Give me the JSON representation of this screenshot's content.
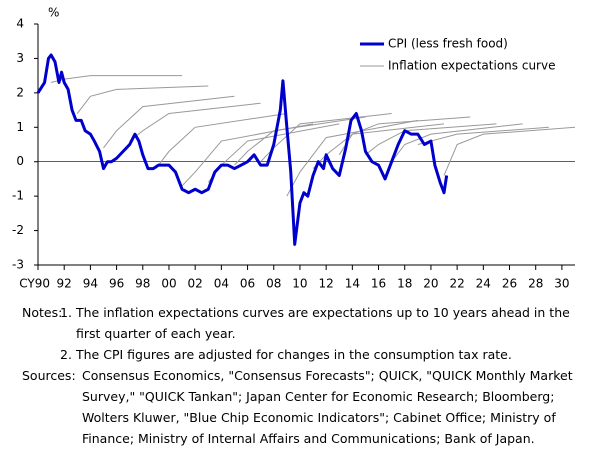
{
  "chart_data": {
    "type": "line",
    "y_unit": "%",
    "xlim": [
      1990,
      2031
    ],
    "ylim": [
      -3,
      4
    ],
    "yticks": [
      -3,
      -2,
      -1,
      0,
      1,
      2,
      3,
      4
    ],
    "xticks": [
      {
        "value": 1990,
        "label": "CY90"
      },
      {
        "value": 1992,
        "label": "92"
      },
      {
        "value": 1994,
        "label": "94"
      },
      {
        "value": 1996,
        "label": "96"
      },
      {
        "value": 1998,
        "label": "98"
      },
      {
        "value": 2000,
        "label": "00"
      },
      {
        "value": 2002,
        "label": "02"
      },
      {
        "value": 2004,
        "label": "04"
      },
      {
        "value": 2006,
        "label": "06"
      },
      {
        "value": 2008,
        "label": "08"
      },
      {
        "value": 2010,
        "label": "10"
      },
      {
        "value": 2012,
        "label": "12"
      },
      {
        "value": 2014,
        "label": "14"
      },
      {
        "value": 2016,
        "label": "16"
      },
      {
        "value": 2018,
        "label": "18"
      },
      {
        "value": 2020,
        "label": "20"
      },
      {
        "value": 2022,
        "label": "22"
      },
      {
        "value": 2024,
        "label": "24"
      },
      {
        "value": 2026,
        "label": "26"
      },
      {
        "value": 2028,
        "label": "28"
      },
      {
        "value": 2030,
        "label": "30"
      }
    ],
    "legend": "upper right",
    "series": [
      {
        "name": "CPI (less fresh food)",
        "color": "#0000cc",
        "x": [
          1990.0,
          1990.5,
          1990.8,
          1991.0,
          1991.3,
          1991.6,
          1991.8,
          1992.0,
          1992.3,
          1992.6,
          1992.9,
          1993.3,
          1993.6,
          1994.0,
          1994.3,
          1994.7,
          1995.0,
          1995.3,
          1995.6,
          1996.0,
          1996.5,
          1997.0,
          1997.4,
          1997.7,
          1998.0,
          1998.4,
          1998.8,
          1999.2,
          1999.6,
          2000.0,
          2000.5,
          2001.0,
          2001.5,
          2002.0,
          2002.5,
          2003.0,
          2003.5,
          2004.0,
          2004.5,
          2005.0,
          2005.5,
          2006.0,
          2006.5,
          2007.0,
          2007.5,
          2008.0,
          2008.5,
          2008.7,
          2009.0,
          2009.3,
          2009.6,
          2010.0,
          2010.3,
          2010.6,
          2011.0,
          2011.4,
          2011.8,
          2012.0,
          2012.5,
          2013.0,
          2013.5,
          2013.9,
          2014.3,
          2014.7,
          2015.0,
          2015.5,
          2016.0,
          2016.5,
          2017.0,
          2017.5,
          2018.0,
          2018.5,
          2019.0,
          2019.5,
          2020.0,
          2020.3,
          2020.7,
          2021.0,
          2021.2
        ],
        "values": [
          2.0,
          2.3,
          3.0,
          3.1,
          2.9,
          2.3,
          2.6,
          2.3,
          2.1,
          1.5,
          1.2,
          1.2,
          0.9,
          0.8,
          0.6,
          0.3,
          -0.2,
          0.0,
          0.0,
          0.1,
          0.3,
          0.5,
          0.8,
          0.6,
          0.2,
          -0.2,
          -0.2,
          -0.1,
          -0.1,
          -0.1,
          -0.3,
          -0.8,
          -0.9,
          -0.8,
          -0.9,
          -0.8,
          -0.3,
          -0.1,
          -0.1,
          -0.2,
          -0.1,
          0.0,
          0.2,
          -0.1,
          -0.1,
          0.5,
          1.5,
          2.35,
          1.0,
          -0.3,
          -2.4,
          -1.2,
          -0.9,
          -1.0,
          -0.4,
          0.0,
          -0.2,
          0.2,
          -0.2,
          -0.4,
          0.4,
          1.2,
          1.4,
          0.9,
          0.3,
          0.0,
          -0.1,
          -0.5,
          0.0,
          0.5,
          0.9,
          0.8,
          0.8,
          0.5,
          0.6,
          -0.1,
          -0.6,
          -0.9,
          -0.4
        ]
      },
      {
        "name": "Inflation expectations curve",
        "color": "#999999",
        "curves": [
          {
            "x": [
              1991,
              1992,
              1994,
              2001
            ],
            "values": [
              2.3,
              2.4,
              2.5,
              2.5
            ]
          },
          {
            "x": [
              1993,
              1994,
              1996,
              2003
            ],
            "values": [
              1.4,
              1.9,
              2.1,
              2.2
            ]
          },
          {
            "x": [
              1995,
              1996,
              1998,
              2005
            ],
            "values": [
              0.4,
              0.9,
              1.6,
              1.9
            ]
          },
          {
            "x": [
              1997,
              1998,
              2000,
              2007
            ],
            "values": [
              0.6,
              0.9,
              1.4,
              1.7
            ]
          },
          {
            "x": [
              1999,
              2000,
              2002,
              2009
            ],
            "values": [
              -0.2,
              0.3,
              1.0,
              1.4
            ]
          },
          {
            "x": [
              2001,
              2002,
              2004,
              2011
            ],
            "values": [
              -0.7,
              -0.3,
              0.6,
              1.1
            ]
          },
          {
            "x": [
              2003,
              2004,
              2006,
              2013
            ],
            "values": [
              -0.6,
              -0.1,
              0.6,
              1.1
            ]
          },
          {
            "x": [
              2005,
              2006,
              2008,
              2015
            ],
            "values": [
              -0.1,
              0.3,
              0.9,
              1.3
            ]
          },
          {
            "x": [
              2007,
              2008,
              2010,
              2017
            ],
            "values": [
              0.0,
              0.4,
              1.1,
              1.4
            ]
          },
          {
            "x": [
              2009,
              2010,
              2012,
              2019
            ],
            "values": [
              -1.0,
              -0.3,
              0.7,
              1.2
            ]
          },
          {
            "x": [
              2011,
              2012,
              2014,
              2021
            ],
            "values": [
              -0.2,
              0.2,
              0.8,
              1.1
            ]
          },
          {
            "x": [
              2013,
              2014,
              2016,
              2023
            ],
            "values": [
              0.2,
              0.8,
              1.1,
              1.3
            ]
          },
          {
            "x": [
              2015,
              2016,
              2018,
              2025
            ],
            "values": [
              0.2,
              0.5,
              0.9,
              1.1
            ]
          },
          {
            "x": [
              2017,
              2018,
              2020,
              2027
            ],
            "values": [
              0.0,
              0.5,
              0.8,
              1.1
            ]
          },
          {
            "x": [
              2019,
              2020,
              2022,
              2029
            ],
            "values": [
              0.5,
              0.6,
              0.8,
              1.0
            ]
          },
          {
            "x": [
              2021,
              2022,
              2024,
              2031
            ],
            "values": [
              -0.4,
              0.5,
              0.8,
              1.0
            ]
          }
        ]
      }
    ]
  },
  "notes": {
    "label": "Notes:",
    "items": [
      {
        "num": "1.",
        "text": "The inflation expectations curves are expectations up to 10 years ahead in the first quarter of each year."
      },
      {
        "num": "2.",
        "text": "The CPI figures are adjusted for changes in the consumption tax rate."
      }
    ]
  },
  "sources": {
    "label": "Sources:",
    "text": "Consensus Economics, \"Consensus Forecasts\"; QUICK, \"QUICK Monthly Market Survey,\" \"QUICK Tankan\"; Japan Center for Economic Research; Bloomberg; Wolters Kluwer, \"Blue Chip Economic Indicators\"; Cabinet Office; Ministry of Finance; Ministry of Internal Affairs and Communications; Bank of Japan."
  }
}
